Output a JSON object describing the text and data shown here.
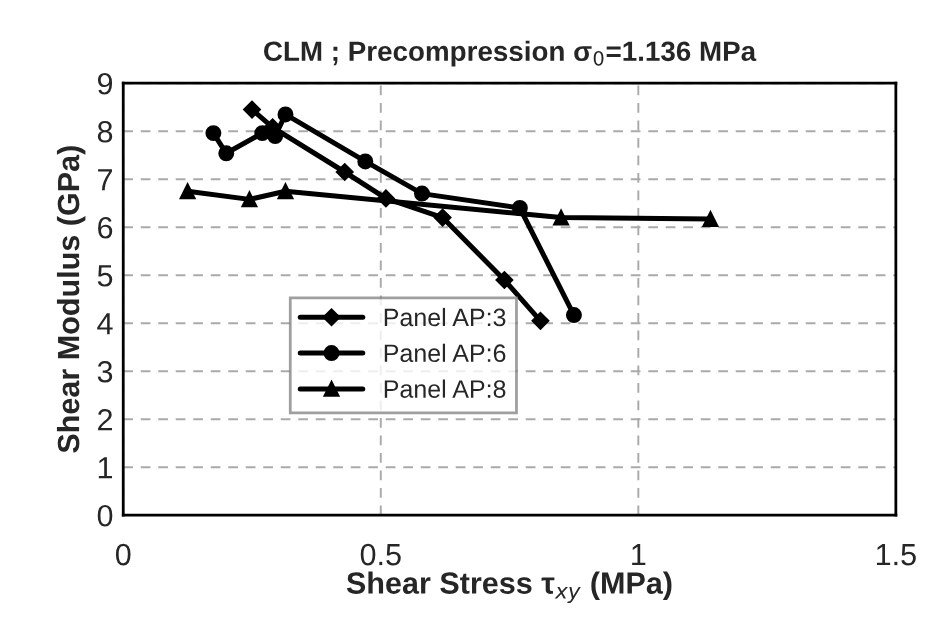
{
  "chart_data": {
    "type": "line",
    "title": "CLM ; Precompression σ$_{0}$=1.136 MPa",
    "xlabel": "Shear Stress τ$_{xy}$ (MPa)",
    "ylabel": "Shear Modulus (GPa)",
    "xlim": [
      0,
      1.5
    ],
    "xticks": [
      0,
      0.5,
      1,
      1.5
    ],
    "ylim": [
      0,
      9
    ],
    "yticks": [
      0,
      1,
      2,
      3,
      4,
      5,
      6,
      7,
      8,
      9
    ],
    "grid": true,
    "legend": "left",
    "line_style": "solid",
    "series": [
      {
        "name": "Panel AP:3",
        "color": "#000000",
        "marker": "diamond",
        "x": [
          0.25,
          0.29,
          0.43,
          0.51,
          0.62,
          0.74,
          0.81
        ],
        "values": [
          8.45,
          8.08,
          7.15,
          6.6,
          6.2,
          4.9,
          4.05
        ]
      },
      {
        "name": "Panel AP:6",
        "color": "#000000",
        "marker": "circle",
        "x": [
          0.175,
          0.2,
          0.27,
          0.295,
          0.315,
          0.47,
          0.58,
          0.77,
          0.875
        ],
        "values": [
          7.96,
          7.54,
          7.96,
          7.9,
          8.35,
          7.37,
          6.7,
          6.4,
          4.17
        ]
      },
      {
        "name": "Panel AP:8",
        "color": "#000000",
        "marker": "triangle",
        "x": [
          0.125,
          0.245,
          0.315,
          0.85,
          1.14
        ],
        "values": [
          6.75,
          6.58,
          6.75,
          6.2,
          6.17
        ]
      }
    ]
  }
}
